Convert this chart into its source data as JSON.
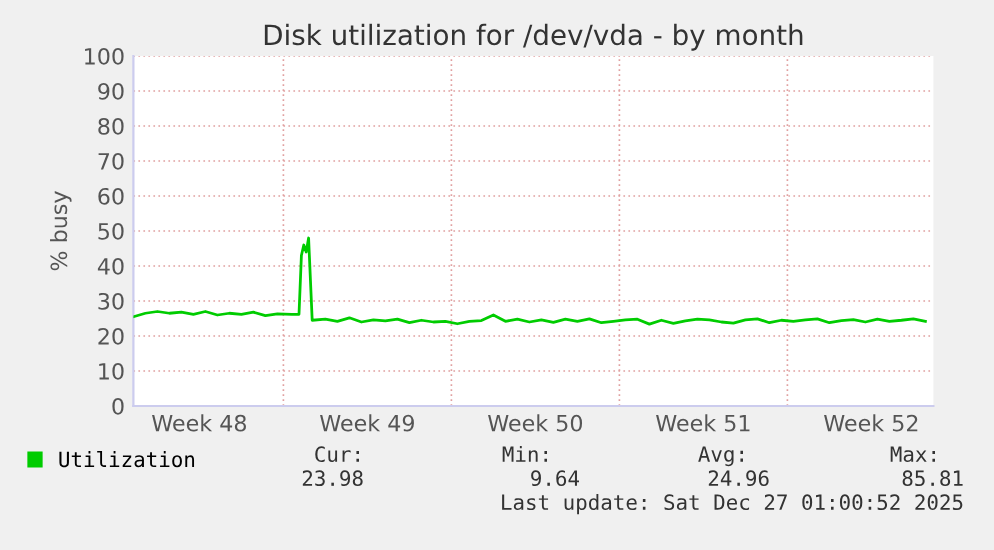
{
  "chart_data": {
    "type": "line",
    "title": "Disk utilization for /dev/vda - by month",
    "ylabel": "% busy",
    "xlim": [
      "2025-11-24T18:00",
      "2025-12-28T02:00"
    ],
    "ylim": [
      0,
      100
    ],
    "xticks": [
      {
        "value": "2025-11-27T12:00",
        "label": "Week 48"
      },
      {
        "value": "2025-12-04T12:00",
        "label": "Week 49"
      },
      {
        "value": "2025-12-11T12:00",
        "label": "Week 50"
      },
      {
        "value": "2025-12-18T12:00",
        "label": "Week 51"
      },
      {
        "value": "2025-12-25T12:00",
        "label": "Week 52"
      }
    ],
    "yticks": [
      0,
      10,
      20,
      30,
      40,
      50,
      60,
      70,
      80,
      90,
      100
    ],
    "grid": true,
    "legend": "bottom left",
    "series": [
      {
        "name": "Utilization",
        "color": "#00cc00",
        "x": [
          "2025-11-24T18:00",
          "2025-11-25T06:00",
          "2025-11-25T18:00",
          "2025-11-26T06:00",
          "2025-11-26T18:00",
          "2025-11-27T06:00",
          "2025-11-27T18:00",
          "2025-11-28T06:00",
          "2025-11-28T18:00",
          "2025-11-29T06:00",
          "2025-11-29T18:00",
          "2025-11-30T06:00",
          "2025-11-30T18:00",
          "2025-12-01T08:24",
          "2025-12-01T15:36",
          "2025-12-01T18:00",
          "2025-12-01T20:24",
          "2025-12-01T22:48",
          "2025-12-02T01:12",
          "2025-12-02T04:48",
          "2025-12-02T18:00",
          "2025-12-03T06:00",
          "2025-12-03T18:00",
          "2025-12-04T06:00",
          "2025-12-04T18:00",
          "2025-12-05T06:00",
          "2025-12-05T18:00",
          "2025-12-06T06:00",
          "2025-12-06T18:00",
          "2025-12-07T06:00",
          "2025-12-07T18:00",
          "2025-12-08T06:00",
          "2025-12-08T18:00",
          "2025-12-09T06:00",
          "2025-12-09T18:00",
          "2025-12-10T06:00",
          "2025-12-10T18:00",
          "2025-12-11T06:00",
          "2025-12-11T18:00",
          "2025-12-12T06:00",
          "2025-12-12T18:00",
          "2025-12-13T06:00",
          "2025-12-13T18:00",
          "2025-12-14T06:00",
          "2025-12-14T18:00",
          "2025-12-15T06:00",
          "2025-12-15T18:00",
          "2025-12-16T06:00",
          "2025-12-16T18:00",
          "2025-12-17T06:00",
          "2025-12-17T18:00",
          "2025-12-18T06:00",
          "2025-12-18T18:00",
          "2025-12-19T06:00",
          "2025-12-19T18:00",
          "2025-12-20T06:00",
          "2025-12-20T18:00",
          "2025-12-21T06:00",
          "2025-12-21T18:00",
          "2025-12-22T06:00",
          "2025-12-22T18:00",
          "2025-12-23T06:00",
          "2025-12-23T18:00",
          "2025-12-24T06:00",
          "2025-12-24T18:00",
          "2025-12-25T06:00",
          "2025-12-25T18:00",
          "2025-12-26T06:00",
          "2025-12-26T18:00",
          "2025-12-27T06:00",
          "2025-12-27T18:00"
        ],
        "values": [
          25.5,
          26.5,
          27,
          26.5,
          26.8,
          26.2,
          27,
          26,
          26.5,
          26.2,
          26.8,
          25.8,
          26.3,
          26.2,
          26.2,
          43,
          46,
          44,
          48,
          24.5,
          24.8,
          24.2,
          25.2,
          24,
          24.6,
          24.3,
          24.8,
          23.8,
          24.5,
          24,
          24.2,
          23.5,
          24.2,
          24.4,
          26,
          24.2,
          24.8,
          24,
          24.6,
          23.9,
          24.8,
          24.2,
          24.9,
          23.8,
          24.2,
          24.6,
          24.8,
          23.4,
          24.5,
          23.6,
          24.3,
          24.8,
          24.6,
          24,
          23.7,
          24.6,
          24.9,
          23.8,
          24.5,
          24.2,
          24.6,
          24.9,
          23.8,
          24.4,
          24.7,
          24,
          24.8,
          24.2,
          24.5,
          24.9,
          24.2
        ]
      }
    ],
    "annotations": [
      "Cur:",
      "23.98",
      "Min:",
      "9.64",
      "Avg:",
      "24.96",
      "Max:",
      "85.81",
      "Last update: Sat Dec 27 01:00:52 2025"
    ]
  }
}
